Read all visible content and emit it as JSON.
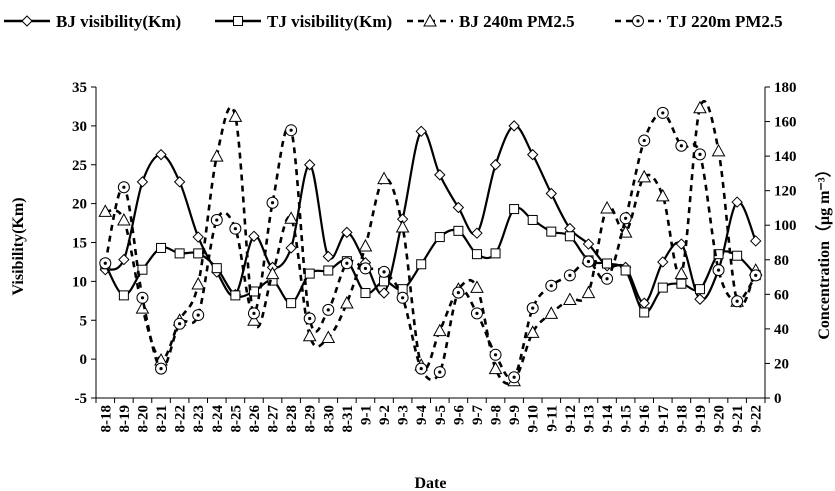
{
  "chart_data": {
    "type": "line",
    "xlabel": "Date",
    "ylabel_left": "Visibility(Km)",
    "ylabel_right": "Concentration（μg m⁻³）",
    "ylim_left": [
      -5,
      35
    ],
    "yticks_left": [
      "-5",
      "0",
      "5",
      "10",
      "15",
      "20",
      "25",
      "30",
      "35"
    ],
    "ylim_right": [
      0,
      180
    ],
    "yticks_right": [
      "0",
      "20",
      "40",
      "60",
      "80",
      "100",
      "120",
      "140",
      "160",
      "180"
    ],
    "categories": [
      "8-18",
      "8-19",
      "8-20",
      "8-21",
      "8-22",
      "8-23",
      "8-24",
      "8-25",
      "8-26",
      "8-27",
      "8-28",
      "8-29",
      "8-30",
      "8-31",
      "9-1",
      "9-2",
      "9-3",
      "9-4",
      "9-5",
      "9-6",
      "9-7",
      "9-8",
      "9-9",
      "9-10",
      "9-11",
      "9-12",
      "9-13",
      "9-14",
      "9-15",
      "9-16",
      "9-17",
      "9-18",
      "9-19",
      "9-20",
      "9-21",
      "9-22"
    ],
    "legend_position": "top",
    "series": [
      {
        "name": "BJ visibility(Km)",
        "axis": "left",
        "style": "solid",
        "marker": "diamond",
        "values": [
          11.5,
          12.8,
          22.8,
          26.3,
          22.8,
          15.7,
          11.2,
          8.3,
          15.8,
          11.8,
          14.3,
          25.0,
          13.2,
          16.3,
          12.4,
          8.5,
          18.0,
          29.3,
          23.7,
          19.5,
          16.2,
          25.0,
          30.0,
          26.3,
          21.3,
          16.8,
          14.8,
          12.0,
          11.8,
          7.2,
          12.5,
          14.8,
          7.7,
          11.5,
          20.2,
          15.2
        ]
      },
      {
        "name": "TJ visibility(Km)",
        "axis": "left",
        "style": "solid",
        "marker": "square",
        "values": [
          12.2,
          8.2,
          11.5,
          14.3,
          13.6,
          13.6,
          11.7,
          8.2,
          8.7,
          10.1,
          7.2,
          11.0,
          11.4,
          12.6,
          8.5,
          10.0,
          9.0,
          12.2,
          15.7,
          16.5,
          13.5,
          13.6,
          19.3,
          17.9,
          16.4,
          15.8,
          12.7,
          12.3,
          11.4,
          6.0,
          9.2,
          9.7,
          9.0,
          13.5,
          13.3,
          10.8
        ]
      },
      {
        "name": "BJ 240m PM2.5",
        "axis": "right",
        "style": "dashed",
        "marker": "triangle",
        "values": [
          108,
          103,
          52,
          22,
          45,
          66,
          140,
          163,
          45,
          72,
          104,
          36,
          35,
          55,
          88,
          127,
          99,
          19,
          39,
          63,
          64,
          17,
          10,
          38,
          49,
          57,
          61,
          110,
          96,
          128,
          117,
          72,
          168,
          143,
          56,
          74
        ]
      },
      {
        "name": "TJ 220m PM2.5",
        "axis": "right",
        "style": "dashed",
        "marker": "circle-dot",
        "values": [
          78,
          122,
          58,
          17,
          43,
          48,
          103,
          98,
          49,
          113,
          155,
          46,
          51,
          78,
          75,
          73,
          58,
          17,
          15,
          61,
          49,
          25,
          12,
          52,
          65,
          71,
          79,
          69,
          104,
          149,
          165,
          146,
          141,
          74,
          56,
          71
        ]
      }
    ]
  }
}
